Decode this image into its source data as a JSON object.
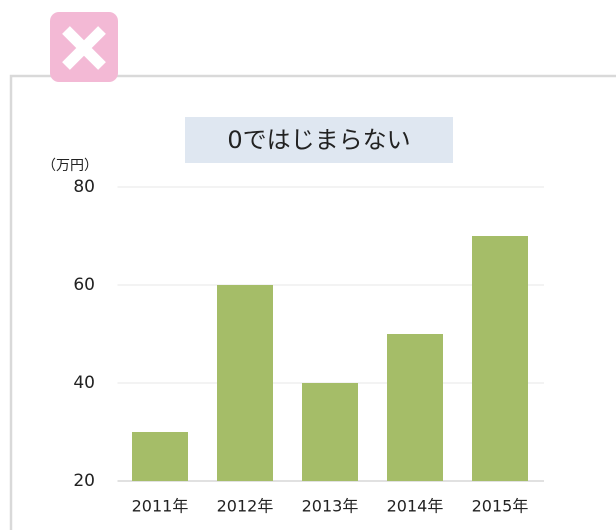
{
  "chart_data": {
    "type": "bar",
    "title": "0ではじまらない",
    "y_axis_label": "（万円）",
    "categories": [
      "2011年",
      "2012年",
      "2013年",
      "2014年",
      "2015年"
    ],
    "values": [
      30,
      60,
      40,
      50,
      70
    ],
    "color": "#a5bd68",
    "ylim": [
      20,
      80
    ],
    "yticks": [
      20,
      40,
      60,
      80
    ],
    "grid": true
  }
}
